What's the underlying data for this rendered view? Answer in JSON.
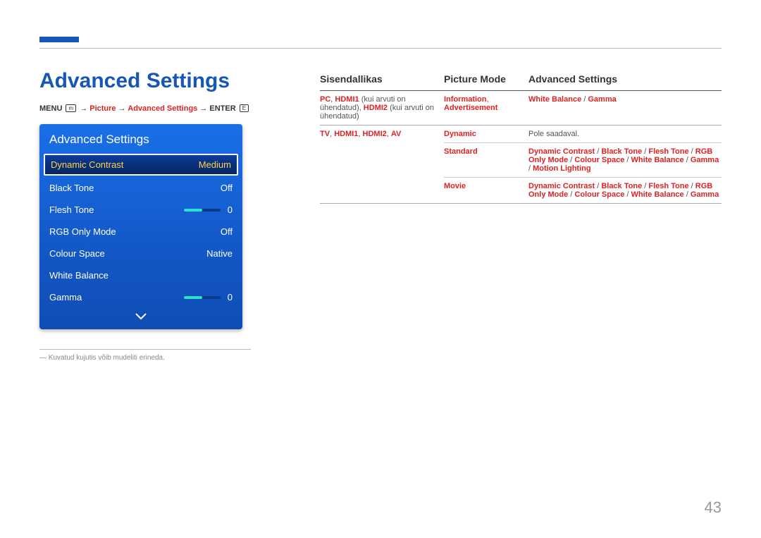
{
  "page_number": "43",
  "heading": "Advanced Settings",
  "breadcrumb": {
    "menu": "MENU",
    "menu_icon": "m",
    "arrow": " → ",
    "p1": "Picture",
    "p2": "Advanced Settings",
    "enter": "ENTER",
    "enter_icon": "E"
  },
  "panel": {
    "title": "Advanced Settings",
    "rows": [
      {
        "label": "Dynamic Contrast",
        "value": "Medium",
        "selected": true
      },
      {
        "label": "Black Tone",
        "value": "Off"
      },
      {
        "label": "Flesh Tone",
        "value": "0",
        "slider": 50
      },
      {
        "label": "RGB Only Mode",
        "value": "Off"
      },
      {
        "label": "Colour Space",
        "value": "Native"
      },
      {
        "label": "White Balance",
        "value": ""
      },
      {
        "label": "Gamma",
        "value": "0",
        "slider": 50
      }
    ]
  },
  "footnote": "Kuvatud kujutis võib mudeliti erineda.",
  "table": {
    "headers": {
      "a": "Sisendallikas",
      "b": "Picture Mode",
      "c": "Advanced Settings"
    },
    "rows": [
      {
        "a_html": [
          {
            "r": "PC"
          },
          {
            "t": ", "
          },
          {
            "r": "HDMI1"
          },
          {
            "t": " (kui arvuti on ühendatud), "
          },
          {
            "r": "HDMI2"
          },
          {
            "t": " (kui arvuti on ühendatud)"
          }
        ],
        "b_html": [
          {
            "r": "Information"
          },
          {
            "t": ", "
          },
          {
            "r": "Advertisement"
          }
        ],
        "c_html": [
          {
            "r": "White Balance"
          },
          {
            "sep": " / "
          },
          {
            "r": "Gamma"
          }
        ]
      },
      {
        "a_html": [
          {
            "r": "TV"
          },
          {
            "t": ", "
          },
          {
            "r": "HDMI1"
          },
          {
            "t": ", "
          },
          {
            "r": "HDMI2"
          },
          {
            "t": ", "
          },
          {
            "r": "AV"
          }
        ],
        "subrows": [
          {
            "b": [
              {
                "r": "Dynamic"
              }
            ],
            "c": [
              {
                "t": "Pole saadaval."
              }
            ]
          },
          {
            "b": [
              {
                "r": "Standard"
              }
            ],
            "c": [
              {
                "r": "Dynamic Contrast"
              },
              {
                "sep": " / "
              },
              {
                "r": "Black Tone"
              },
              {
                "sep": " / "
              },
              {
                "r": "Flesh Tone"
              },
              {
                "sep": " / "
              },
              {
                "r": "RGB Only Mode"
              },
              {
                "sep": " / "
              },
              {
                "r": "Colour Space"
              },
              {
                "sep": " / "
              },
              {
                "r": "White Balance"
              },
              {
                "sep": " / "
              },
              {
                "r": "Gamma"
              },
              {
                "sep": " / "
              },
              {
                "r": "Motion Lighting"
              }
            ]
          },
          {
            "b": [
              {
                "r": "Movie"
              }
            ],
            "c": [
              {
                "r": "Dynamic Contrast"
              },
              {
                "sep": " / "
              },
              {
                "r": "Black Tone"
              },
              {
                "sep": " / "
              },
              {
                "r": "Flesh Tone"
              },
              {
                "sep": " / "
              },
              {
                "r": "RGB Only Mode"
              },
              {
                "sep": " / "
              },
              {
                "r": "Colour Space"
              },
              {
                "sep": " / "
              },
              {
                "r": "White Balance"
              },
              {
                "sep": " / "
              },
              {
                "r": "Gamma"
              }
            ]
          }
        ]
      }
    ]
  }
}
